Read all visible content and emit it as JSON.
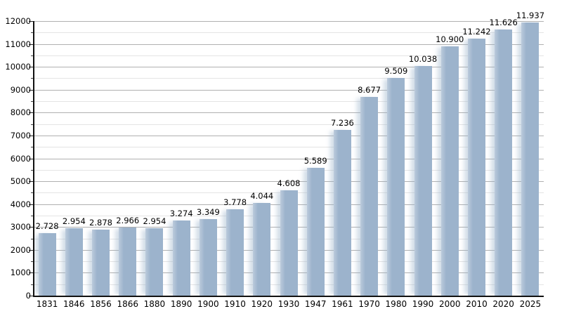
{
  "chart_data": {
    "type": "bar",
    "title": "",
    "xlabel": "",
    "ylabel": "",
    "categories": [
      "1831",
      "1846",
      "1856",
      "1866",
      "1880",
      "1890",
      "1900",
      "1910",
      "1920",
      "1930",
      "1947",
      "1961",
      "1970",
      "1980",
      "1990",
      "2000",
      "2010",
      "2020",
      "2025"
    ],
    "values": [
      2728,
      2954,
      2878,
      2966,
      2954,
      3274,
      3349,
      3778,
      4044,
      4608,
      5589,
      7236,
      8677,
      9509,
      10038,
      10900,
      11242,
      11626,
      11937
    ],
    "value_labels": [
      "2.728",
      "2.954",
      "2.878",
      "2.966",
      "2.954",
      "3.274",
      "3.349",
      "3.778",
      "4.044",
      "4.608",
      "5.589",
      "7.236",
      "8.677",
      "9.509",
      "10.038",
      "10.900",
      "11.242",
      "11.626",
      "11.937"
    ],
    "ylim": [
      0,
      12000
    ],
    "y_major_step": 1000,
    "y_minor_step": 500,
    "grid": "on",
    "legend": "none",
    "colors": {
      "bar_fill": "#9cb3cc",
      "bar_fill_light": "#bccbdc",
      "bar_glow": "rgba(156,179,204,0.45)",
      "grid_major": "#b0b0b0",
      "grid_minor": "#e4e4e4",
      "axis": "#111111",
      "text": "#000000",
      "background": "#ffffff"
    }
  }
}
